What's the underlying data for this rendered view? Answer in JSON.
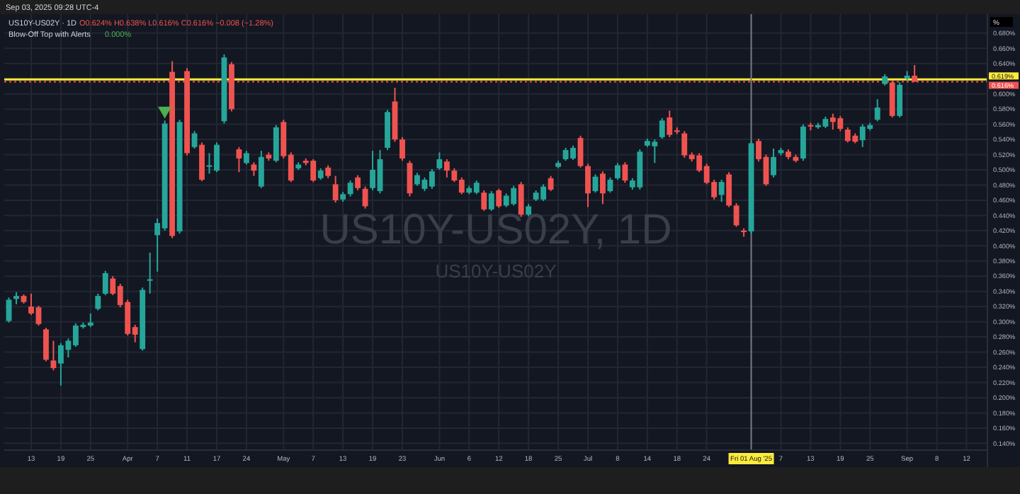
{
  "chart_data": {
    "type": "candlestick",
    "title": "US10Y-US02Y, 1D",
    "subtitle": "US10Y-US02Y",
    "annotations": [
      "Sep 03, 2025 09:28 UTC-4",
      "US10Y-US02Y · 1D",
      "O0.624% H0.638% L0.616% C0.616% −0.008 (−1.28%)",
      "Blow-Off Top with Alerts",
      "0.000%",
      "%"
    ],
    "categories": [
      null,
      null,
      null,
      "13",
      null,
      null,
      null,
      "19",
      null,
      null,
      null,
      "25",
      null,
      null,
      null,
      null,
      "Apr",
      null,
      null,
      null,
      "7",
      null,
      null,
      null,
      "11",
      null,
      null,
      null,
      "17",
      null,
      null,
      null,
      "24",
      null,
      null,
      null,
      null,
      "May",
      null,
      null,
      null,
      "7",
      null,
      null,
      null,
      "13",
      null,
      null,
      null,
      "19",
      null,
      null,
      null,
      "23",
      null,
      null,
      null,
      null,
      "Jun",
      null,
      null,
      null,
      "6",
      null,
      null,
      null,
      "12",
      null,
      null,
      null,
      "18",
      null,
      null,
      null,
      "25",
      null,
      null,
      null,
      "Jul",
      null,
      null,
      null,
      "8",
      null,
      null,
      null,
      "14",
      null,
      null,
      null,
      "18",
      null,
      null,
      null,
      "24",
      null,
      null,
      null,
      null,
      null,
      "Fri 01 Aug '25",
      null,
      null,
      null,
      "7",
      null,
      null,
      null,
      "13",
      null,
      null,
      null,
      "19",
      null,
      null,
      null,
      "25",
      null,
      null,
      null,
      null,
      "Sep",
      null,
      null,
      null,
      "8",
      null,
      null,
      null,
      "12",
      null
    ],
    "ohlc": [
      [
        0.301,
        0.332,
        0.299,
        0.329
      ],
      [
        0.33,
        0.339,
        0.323,
        0.334
      ],
      [
        0.334,
        0.336,
        0.324,
        0.326
      ],
      [
        0.32,
        0.337,
        0.309,
        0.311
      ],
      [
        0.319,
        0.321,
        0.295,
        0.297
      ],
      [
        0.29,
        0.292,
        0.248,
        0.25
      ],
      [
        0.249,
        0.275,
        0.236,
        0.239
      ],
      [
        0.245,
        0.272,
        0.216,
        0.269
      ],
      [
        0.263,
        0.278,
        0.253,
        0.275
      ],
      [
        0.269,
        0.298,
        0.267,
        0.295
      ],
      [
        0.293,
        0.299,
        0.291,
        0.296
      ],
      [
        0.295,
        0.311,
        0.293,
        0.299
      ],
      [
        0.317,
        0.337,
        0.315,
        0.334
      ],
      [
        0.337,
        0.367,
        0.335,
        0.364
      ],
      [
        0.357,
        0.36,
        0.335,
        0.337
      ],
      [
        0.347,
        0.35,
        0.319,
        0.322
      ],
      [
        0.326,
        0.329,
        0.282,
        0.284
      ],
      [
        0.293,
        0.296,
        0.273,
        0.283
      ],
      [
        0.264,
        0.345,
        0.262,
        0.342
      ],
      [
        0.354,
        0.391,
        0.337,
        0.356
      ],
      [
        0.414,
        0.436,
        0.366,
        0.43
      ],
      [
        0.423,
        0.565,
        0.42,
        0.561
      ],
      [
        0.629,
        0.643,
        0.41,
        0.413
      ],
      [
        0.419,
        0.566,
        0.416,
        0.563
      ],
      [
        0.63,
        0.634,
        0.519,
        0.522
      ],
      [
        0.53,
        0.551,
        0.528,
        0.548
      ],
      [
        0.533,
        0.536,
        0.485,
        0.487
      ],
      [
        0.504,
        0.522,
        0.495,
        0.506
      ],
      [
        0.499,
        0.536,
        0.497,
        0.533
      ],
      [
        0.564,
        0.652,
        0.561,
        0.648
      ],
      [
        0.639,
        0.642,
        0.577,
        0.58
      ],
      [
        0.527,
        0.53,
        0.497,
        0.515
      ],
      [
        0.509,
        0.525,
        0.507,
        0.522
      ],
      [
        0.507,
        0.51,
        0.492,
        0.499
      ],
      [
        0.478,
        0.525,
        0.476,
        0.517
      ],
      [
        0.52,
        0.523,
        0.512,
        0.515
      ],
      [
        0.512,
        0.559,
        0.51,
        0.556
      ],
      [
        0.563,
        0.566,
        0.515,
        0.518
      ],
      [
        0.52,
        0.523,
        0.484,
        0.486
      ],
      [
        0.502,
        0.51,
        0.5,
        0.507
      ],
      [
        0.512,
        0.515,
        0.506,
        0.509
      ],
      [
        0.512,
        0.514,
        0.484,
        0.486
      ],
      [
        0.489,
        0.502,
        0.487,
        0.499
      ],
      [
        0.503,
        0.506,
        0.489,
        0.492
      ],
      [
        0.481,
        0.492,
        0.457,
        0.46
      ],
      [
        0.461,
        0.471,
        0.458,
        0.468
      ],
      [
        0.468,
        0.486,
        0.465,
        0.483
      ],
      [
        0.49,
        0.493,
        0.473,
        0.476
      ],
      [
        0.475,
        0.478,
        0.449,
        0.452
      ],
      [
        0.476,
        0.525,
        0.473,
        0.5
      ],
      [
        0.472,
        0.526,
        0.469,
        0.514
      ],
      [
        0.529,
        0.579,
        0.526,
        0.576
      ],
      [
        0.59,
        0.608,
        0.537,
        0.54
      ],
      [
        0.54,
        0.543,
        0.512,
        0.515
      ],
      [
        0.509,
        0.512,
        0.465,
        0.469
      ],
      [
        0.481,
        0.496,
        0.479,
        0.493
      ],
      [
        0.475,
        0.49,
        0.472,
        0.487
      ],
      [
        0.478,
        0.501,
        0.475,
        0.498
      ],
      [
        0.502,
        0.523,
        0.5,
        0.514
      ],
      [
        0.511,
        0.514,
        0.49,
        0.499
      ],
      [
        0.499,
        0.502,
        0.484,
        0.486
      ],
      [
        0.487,
        0.49,
        0.468,
        0.47
      ],
      [
        0.47,
        0.479,
        0.468,
        0.476
      ],
      [
        0.47,
        0.486,
        0.468,
        0.483
      ],
      [
        0.47,
        0.473,
        0.446,
        0.448
      ],
      [
        0.448,
        0.472,
        0.446,
        0.469
      ],
      [
        0.473,
        0.475,
        0.45,
        0.452
      ],
      [
        0.453,
        0.469,
        0.451,
        0.466
      ],
      [
        0.455,
        0.479,
        0.453,
        0.476
      ],
      [
        0.481,
        0.484,
        0.438,
        0.441
      ],
      [
        0.441,
        0.455,
        0.439,
        0.452
      ],
      [
        0.461,
        0.473,
        0.459,
        0.47
      ],
      [
        0.461,
        0.481,
        0.459,
        0.478
      ],
      [
        0.489,
        0.492,
        0.472,
        0.474
      ],
      [
        0.504,
        0.512,
        0.502,
        0.509
      ],
      [
        0.514,
        0.529,
        0.512,
        0.526
      ],
      [
        0.515,
        0.532,
        0.513,
        0.529
      ],
      [
        0.542,
        0.545,
        0.503,
        0.505
      ],
      [
        0.505,
        0.508,
        0.451,
        0.469
      ],
      [
        0.472,
        0.494,
        0.47,
        0.491
      ],
      [
        0.495,
        0.498,
        0.455,
        0.469
      ],
      [
        0.472,
        0.49,
        0.47,
        0.487
      ],
      [
        0.489,
        0.509,
        0.487,
        0.506
      ],
      [
        0.507,
        0.51,
        0.483,
        0.486
      ],
      [
        0.477,
        0.489,
        0.474,
        0.486
      ],
      [
        0.477,
        0.527,
        0.474,
        0.524
      ],
      [
        0.532,
        0.541,
        0.53,
        0.538
      ],
      [
        0.531,
        0.54,
        0.509,
        0.537
      ],
      [
        0.543,
        0.568,
        0.541,
        0.565
      ],
      [
        0.569,
        0.578,
        0.543,
        0.546
      ],
      [
        0.552,
        0.556,
        0.547,
        0.55
      ],
      [
        0.548,
        0.551,
        0.516,
        0.519
      ],
      [
        0.52,
        0.523,
        0.511,
        0.514
      ],
      [
        0.519,
        0.522,
        0.497,
        0.499
      ],
      [
        0.505,
        0.508,
        0.481,
        0.483
      ],
      [
        0.484,
        0.487,
        0.461,
        0.464
      ],
      [
        0.467,
        0.487,
        0.458,
        0.484
      ],
      [
        0.494,
        0.497,
        0.451,
        0.453
      ],
      [
        0.453,
        0.456,
        0.425,
        0.427
      ],
      [
        0.42,
        0.423,
        0.412,
        0.418
      ],
      [
        0.419,
        0.538,
        0.416,
        0.535
      ],
      [
        0.538,
        0.541,
        0.511,
        0.514
      ],
      [
        0.517,
        0.52,
        0.479,
        0.481
      ],
      [
        0.493,
        0.528,
        0.49,
        0.517
      ],
      [
        0.522,
        0.529,
        0.519,
        0.526
      ],
      [
        0.524,
        0.527,
        0.514,
        0.517
      ],
      [
        0.517,
        0.52,
        0.51,
        0.512
      ],
      [
        0.515,
        0.56,
        0.512,
        0.557
      ],
      [
        0.559,
        0.562,
        0.552,
        0.557
      ],
      [
        0.556,
        0.562,
        0.554,
        0.559
      ],
      [
        0.557,
        0.57,
        0.555,
        0.567
      ],
      [
        0.569,
        0.574,
        0.553,
        0.563
      ],
      [
        0.568,
        0.571,
        0.551,
        0.554
      ],
      [
        0.553,
        0.556,
        0.536,
        0.538
      ],
      [
        0.545,
        0.548,
        0.535,
        0.537
      ],
      [
        0.539,
        0.56,
        0.53,
        0.557
      ],
      [
        0.554,
        0.562,
        0.552,
        0.559
      ],
      [
        0.566,
        0.593,
        0.564,
        0.582
      ],
      [
        0.613,
        0.626,
        0.611,
        0.623
      ],
      [
        0.615,
        0.618,
        0.569,
        0.571
      ],
      [
        0.571,
        0.615,
        0.569,
        0.612
      ],
      [
        0.62,
        0.63,
        0.618,
        0.624
      ],
      [
        0.624,
        0.638,
        0.616,
        0.616
      ],
      null,
      null,
      null,
      null,
      null,
      null,
      null,
      null
    ],
    "colors": [
      "#26a69a",
      "#26a69a",
      "#ef5350",
      "#ef5350",
      "#ef5350",
      "#ef5350",
      "#ef5350",
      "#26a69a",
      "#26a69a",
      "#26a69a",
      "#26a69a",
      "#26a69a",
      "#26a69a",
      "#26a69a",
      "#ef5350",
      "#ef5350",
      "#ef5350",
      "#ef5350",
      "#26a69a",
      "#26a69a",
      "#26a69a",
      "#26a69a",
      "#ef5350",
      "#26a69a",
      "#ef5350",
      "#26a69a",
      "#ef5350",
      "#26a69a",
      "#26a69a",
      "#26a69a",
      "#ef5350",
      "#ef5350",
      "#26a69a",
      "#ef5350",
      "#26a69a",
      "#ef5350",
      "#26a69a",
      "#ef5350",
      "#ef5350",
      "#26a69a",
      "#ef5350",
      "#ef5350",
      "#26a69a",
      "#ef5350",
      "#ef5350",
      "#26a69a",
      "#26a69a",
      "#ef5350",
      "#ef5350",
      "#26a69a",
      "#26a69a",
      "#26a69a",
      "#ef5350",
      "#ef5350",
      "#ef5350",
      "#26a69a",
      "#26a69a",
      "#26a69a",
      "#26a69a",
      "#ef5350",
      "#ef5350",
      "#ef5350",
      "#26a69a",
      "#26a69a",
      "#ef5350",
      "#26a69a",
      "#ef5350",
      "#26a69a",
      "#26a69a",
      "#ef5350",
      "#26a69a",
      "#26a69a",
      "#26a69a",
      "#ef5350",
      "#26a69a",
      "#26a69a",
      "#26a69a",
      "#ef5350",
      "#ef5350",
      "#26a69a",
      "#ef5350",
      "#26a69a",
      "#26a69a",
      "#ef5350",
      "#26a69a",
      "#26a69a",
      "#26a69a",
      "#26a69a",
      "#26a69a",
      "#ef5350",
      "#ef5350",
      "#ef5350",
      "#ef5350",
      "#ef5350",
      "#ef5350",
      "#ef5350",
      "#26a69a",
      "#ef5350",
      "#ef5350",
      "#ef5350",
      "#26a69a",
      "#ef5350",
      "#ef5350",
      "#26a69a",
      "#26a69a",
      "#ef5350",
      "#ef5350",
      "#26a69a",
      "#ef5350",
      "#26a69a",
      "#26a69a",
      "#ef5350",
      "#ef5350",
      "#ef5350",
      "#ef5350",
      "#26a69a",
      "#26a69a",
      "#26a69a",
      "#26a69a",
      "#ef5350",
      "#26a69a",
      "#26a69a",
      "#ef5350",
      null,
      null,
      null,
      null,
      null,
      null,
      null,
      null
    ],
    "series": [
      {
        "type": "scatter",
        "color": "#4caf50",
        "marker": "triangle",
        "values": [
          null,
          null,
          null,
          null,
          null,
          null,
          null,
          null,
          null,
          null,
          null,
          null,
          null,
          null,
          null,
          null,
          null,
          null,
          null,
          null,
          null,
          0.578,
          null,
          null,
          null,
          null,
          null,
          null,
          null,
          null,
          null,
          null,
          null,
          null,
          null,
          null,
          null,
          null,
          null,
          null,
          null,
          null,
          null,
          null,
          null,
          null,
          null,
          null,
          null,
          null,
          null,
          null,
          null,
          null,
          null,
          null,
          null,
          null,
          null,
          null,
          null,
          null,
          null,
          null,
          null,
          null,
          null,
          null,
          null,
          null,
          null,
          null,
          null,
          null,
          null,
          null,
          null,
          null,
          null,
          null,
          null,
          null,
          null,
          null,
          null,
          null,
          null,
          null,
          null,
          null,
          null,
          null,
          null,
          null,
          null,
          null,
          null,
          null,
          null,
          null,
          null,
          null,
          null,
          null,
          null,
          null,
          null,
          null,
          null,
          null,
          null,
          null,
          null,
          null,
          null,
          null,
          null,
          null,
          null,
          null,
          null,
          null,
          null,
          null,
          null,
          null,
          null,
          null,
          null,
          null,
          null
        ]
      }
    ],
    "ylim": [
      0.131,
      0.705
    ],
    "yticks": [
      {
        "value": 0.14,
        "label": "0.140%"
      },
      {
        "value": 0.16,
        "label": "0.160%"
      },
      {
        "value": 0.18,
        "label": "0.180%"
      },
      {
        "value": 0.2,
        "label": "0.200%"
      },
      {
        "value": 0.22,
        "label": "0.220%"
      },
      {
        "value": 0.24,
        "label": "0.240%"
      },
      {
        "value": 0.26,
        "label": "0.260%"
      },
      {
        "value": 0.28,
        "label": "0.280%"
      },
      {
        "value": 0.3,
        "label": "0.300%"
      },
      {
        "value": 0.32,
        "label": "0.320%"
      },
      {
        "value": 0.34,
        "label": "0.340%"
      },
      {
        "value": 0.36,
        "label": "0.360%"
      },
      {
        "value": 0.38,
        "label": "0.380%"
      },
      {
        "value": 0.4,
        "label": "0.400%"
      },
      {
        "value": 0.42,
        "label": "0.420%"
      },
      {
        "value": 0.44,
        "label": "0.440%"
      },
      {
        "value": 0.46,
        "label": "0.460%"
      },
      {
        "value": 0.48,
        "label": "0.480%"
      },
      {
        "value": 0.5,
        "label": "0.500%"
      },
      {
        "value": 0.52,
        "label": "0.520%"
      },
      {
        "value": 0.54,
        "label": "0.540%"
      },
      {
        "value": 0.56,
        "label": "0.560%"
      },
      {
        "value": 0.58,
        "label": "0.580%"
      },
      {
        "value": 0.6,
        "label": "0.600%"
      },
      {
        "value": 0.62,
        "label": null
      },
      {
        "value": 0.64,
        "label": "0.640%"
      },
      {
        "value": 0.66,
        "label": "0.660%"
      },
      {
        "value": 0.68,
        "label": "0.680%"
      }
    ],
    "ref_lines": [
      {
        "axis": "y",
        "value": 0.619,
        "label": "0.619%",
        "color": "#ffeb3b",
        "line_style": "solid"
      },
      {
        "axis": "y",
        "value": 0.616,
        "label": "0.616%",
        "color": "#ef5350",
        "line_style": "dotted"
      },
      {
        "axis": "x",
        "value": "Fri 01 Aug '25",
        "color": "#787b86",
        "line_style": "solid"
      }
    ],
    "grid": true
  }
}
